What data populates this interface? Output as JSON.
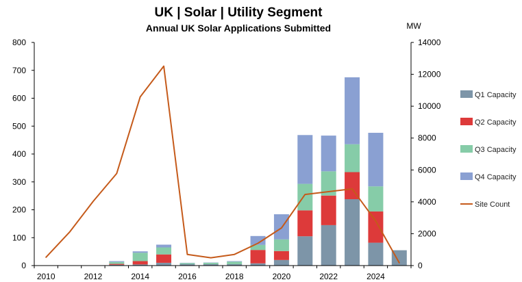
{
  "chart_data": {
    "type": "bar",
    "stacked": true,
    "title": "UK | Solar | Utility Segment",
    "subtitle": "Annual UK Solar Applications Submitted",
    "y2label": "MW",
    "x": [
      2010,
      2011,
      2012,
      2013,
      2014,
      2015,
      2016,
      2017,
      2018,
      2019,
      2020,
      2021,
      2022,
      2023,
      2024,
      2025
    ],
    "x_ticks": [
      "2010",
      "2012",
      "2014",
      "2016",
      "2018",
      "2020",
      "2022",
      "2024"
    ],
    "y_ticks": [
      "0",
      "100",
      "200",
      "300",
      "400",
      "500",
      "600",
      "700",
      "800"
    ],
    "y2_ticks": [
      "0",
      "2000",
      "4000",
      "6000",
      "8000",
      "10000",
      "12000",
      "14000"
    ],
    "ylim": [
      0,
      800
    ],
    "y2lim": [
      0,
      14000
    ],
    "xlim": [
      2010,
      2026
    ],
    "grid": false,
    "legend_position": "right",
    "series": [
      {
        "name": "Q1 Capacity",
        "axis": "left",
        "color": "#7d95a8",
        "values": [
          0,
          0,
          0,
          3,
          4,
          10,
          5,
          5,
          5,
          8,
          20,
          105,
          145,
          238,
          82,
          55
        ]
      },
      {
        "name": "Q2 Capacity",
        "axis": "left",
        "color": "#dd3a3a",
        "values": [
          0,
          0,
          0,
          3,
          12,
          30,
          0,
          0,
          0,
          48,
          32,
          93,
          106,
          97,
          112,
          0
        ]
      },
      {
        "name": "Q3 Capacity",
        "axis": "left",
        "color": "#86cca8",
        "values": [
          0,
          0,
          0,
          7,
          30,
          25,
          4,
          5,
          9,
          18,
          42,
          95,
          87,
          100,
          90,
          0
        ]
      },
      {
        "name": "Q4 Capacity",
        "axis": "left",
        "color": "#8aa0d2",
        "values": [
          0,
          0,
          0,
          3,
          5,
          10,
          1,
          1,
          2,
          32,
          90,
          175,
          128,
          240,
          192,
          0
        ]
      },
      {
        "name": "Site Count",
        "type": "line",
        "axis": "left",
        "color": "#c55a1a",
        "values": [
          30,
          120,
          230,
          330,
          605,
          715,
          40,
          28,
          40,
          80,
          135,
          255,
          265,
          275,
          160,
          10
        ]
      }
    ]
  }
}
